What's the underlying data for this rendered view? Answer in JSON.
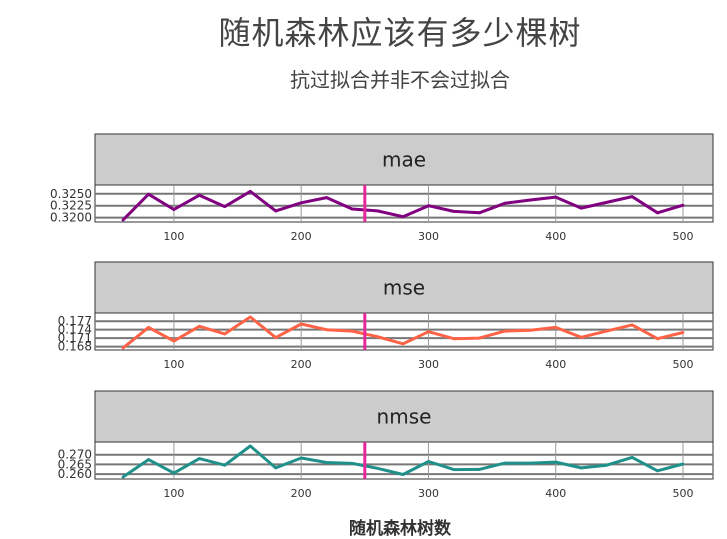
{
  "chart_data": {
    "type": "line",
    "title": "随机森林应该有多少棵树",
    "subtitle": "抗过拟合并非不会过拟合",
    "xlabel": "随机森林树数",
    "x": [
      60,
      80,
      100,
      120,
      140,
      160,
      180,
      200,
      220,
      240,
      260,
      280,
      300,
      320,
      340,
      360,
      380,
      400,
      420,
      440,
      460,
      480,
      500
    ],
    "x_ticks": [
      "100",
      "200",
      "300",
      "400",
      "500"
    ],
    "x_tick_values": [
      100,
      200,
      300,
      400,
      500
    ],
    "xlim": [
      50,
      510
    ],
    "vline_x": 250,
    "vline_color": "#e8259a",
    "panels": [
      {
        "name": "mae",
        "color": "#800080",
        "y_ticks": [
          "0.3250",
          "0.3225",
          "0.3200"
        ],
        "y_tick_values": [
          0.325,
          0.3225,
          0.32
        ],
        "ylim": [
          0.3195,
          0.326
        ],
        "values": [
          0.3195,
          0.3249,
          0.3217,
          0.3247,
          0.3223,
          0.3255,
          0.3214,
          0.3231,
          0.3242,
          0.3218,
          0.3214,
          0.3202,
          0.3225,
          0.3213,
          0.321,
          0.323,
          0.3237,
          0.3243,
          0.322,
          0.3232,
          0.3244,
          0.321,
          0.3226
        ]
      },
      {
        "name": "mse",
        "color": "#ff6347",
        "y_ticks": [
          "0.177",
          "0.174",
          "0.171",
          "0.168"
        ],
        "y_tick_values": [
          0.177,
          0.174,
          0.171,
          0.168
        ],
        "ylim": [
          0.1675,
          0.1785
        ],
        "values": [
          0.1675,
          0.1748,
          0.17,
          0.1752,
          0.1725,
          0.1785,
          0.1712,
          0.176,
          0.174,
          0.1735,
          0.1715,
          0.169,
          0.1733,
          0.1708,
          0.171,
          0.1735,
          0.1738,
          0.1748,
          0.1713,
          0.1735,
          0.1757,
          0.1708,
          0.173
        ]
      },
      {
        "name": "nmse",
        "color": "#20908a",
        "y_ticks": [
          "0.270",
          "0.265",
          "0.260"
        ],
        "y_tick_values": [
          0.27,
          0.265,
          0.26
        ],
        "ylim": [
          0.2585,
          0.2745
        ],
        "values": [
          0.2585,
          0.2675,
          0.2605,
          0.268,
          0.2646,
          0.2745,
          0.2632,
          0.2683,
          0.266,
          0.2655,
          0.263,
          0.2598,
          0.2665,
          0.2623,
          0.2624,
          0.2657,
          0.2657,
          0.2662,
          0.2632,
          0.2646,
          0.2686,
          0.2617,
          0.2652
        ]
      }
    ]
  }
}
